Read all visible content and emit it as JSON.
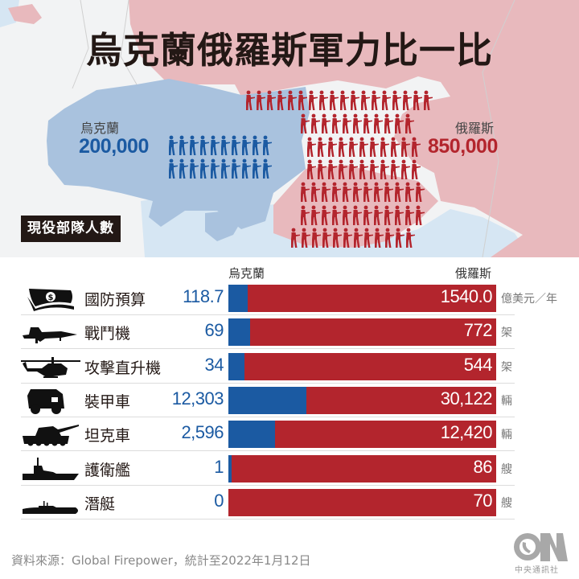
{
  "title": "烏克蘭俄羅斯軍力比一比",
  "troops": {
    "tag": "現役部隊人數",
    "ukraine": {
      "label": "烏克蘭",
      "value": "200,000",
      "color": "#1b5aa2"
    },
    "russia": {
      "label": "俄羅斯",
      "value": "850,000",
      "color": "#b3252d"
    },
    "soldier_icon": "soldier-with-rifle-icon"
  },
  "comparison": {
    "col_ukraine": "烏克蘭",
    "col_russia": "俄羅斯",
    "rows": [
      {
        "icon": "money-icon",
        "label": "國防預算",
        "ukraine": "118.7",
        "russia": "1540.0",
        "unit": "億美元／年"
      },
      {
        "icon": "fighter-jet-icon",
        "label": "戰鬥機",
        "ukraine": "69",
        "russia": "772",
        "unit": "架"
      },
      {
        "icon": "attack-helicopter-icon",
        "label": "攻擊直升機",
        "ukraine": "34",
        "russia": "544",
        "unit": "架"
      },
      {
        "icon": "armored-vehicle-icon",
        "label": "裝甲車",
        "ukraine": "12,303",
        "russia": "30,122",
        "unit": "輛"
      },
      {
        "icon": "tank-icon",
        "label": "坦克車",
        "ukraine": "2,596",
        "russia": "12,420",
        "unit": "輛"
      },
      {
        "icon": "frigate-icon",
        "label": "護衛艦",
        "ukraine": "1",
        "russia": "86",
        "unit": "艘"
      },
      {
        "icon": "submarine-icon",
        "label": "潛艇",
        "ukraine": "0",
        "russia": "70",
        "unit": "艘"
      }
    ]
  },
  "footer": {
    "source": "資料來源：Global Firepower，統計至2022年1月12日",
    "logo_text": "中央通訊社",
    "logo_mark": "CNA"
  },
  "colors": {
    "ukraine": "#1b5aa2",
    "russia": "#b3252d",
    "russia_map": "#e8b9bd",
    "ukraine_map": "#a9c2de"
  },
  "chart_data": {
    "type": "bar",
    "title": "烏克蘭俄羅斯軍力比一比",
    "subtitle": "現役部隊人數：烏克蘭 200,000；俄羅斯 850,000",
    "orientation": "horizontal-stacked-100%",
    "categories": [
      "國防預算",
      "戰鬥機",
      "攻擊直升機",
      "裝甲車",
      "坦克車",
      "護衛艦",
      "潛艇"
    ],
    "units": [
      "億美元／年",
      "架",
      "架",
      "輛",
      "輛",
      "艘",
      "艘"
    ],
    "series": [
      {
        "name": "烏克蘭",
        "color": "#1b5aa2",
        "values": [
          118.7,
          69,
          34,
          12303,
          2596,
          1,
          0
        ]
      },
      {
        "name": "俄羅斯",
        "color": "#b3252d",
        "values": [
          1540.0,
          772,
          544,
          30122,
          12420,
          86,
          70
        ]
      }
    ],
    "active_troops": {
      "烏克蘭": 200000,
      "俄羅斯": 850000
    },
    "legend": "column headers above bars (烏克蘭 left, 俄羅斯 right)",
    "source": "Global Firepower，統計至2022年1月12日"
  }
}
